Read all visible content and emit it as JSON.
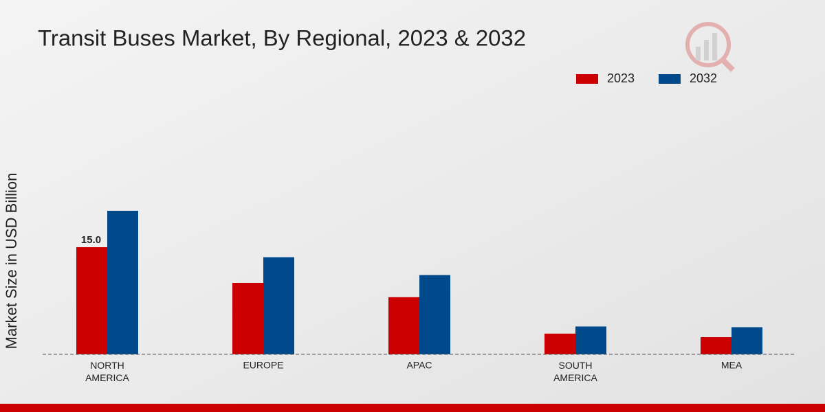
{
  "chart_data": {
    "type": "bar",
    "title": "Transit Buses Market, By Regional, 2023 & 2032",
    "y_label": "Market Size in USD Billion",
    "categories": [
      "NORTH\nAMERICA",
      "EUROPE",
      "APAC",
      "SOUTH\nAMERICA",
      "MEA"
    ],
    "series": [
      {
        "name": "2023",
        "color": "#cc0000",
        "values": [
          15.0,
          10.0,
          8.0,
          2.9,
          2.4
        ],
        "value_labels": [
          "15.0",
          null,
          null,
          null,
          null
        ]
      },
      {
        "name": "2032",
        "color": "#004a8c",
        "values": [
          20.1,
          13.6,
          11.1,
          3.9,
          3.8
        ]
      }
    ],
    "ylim": [
      0,
      25
    ]
  }
}
